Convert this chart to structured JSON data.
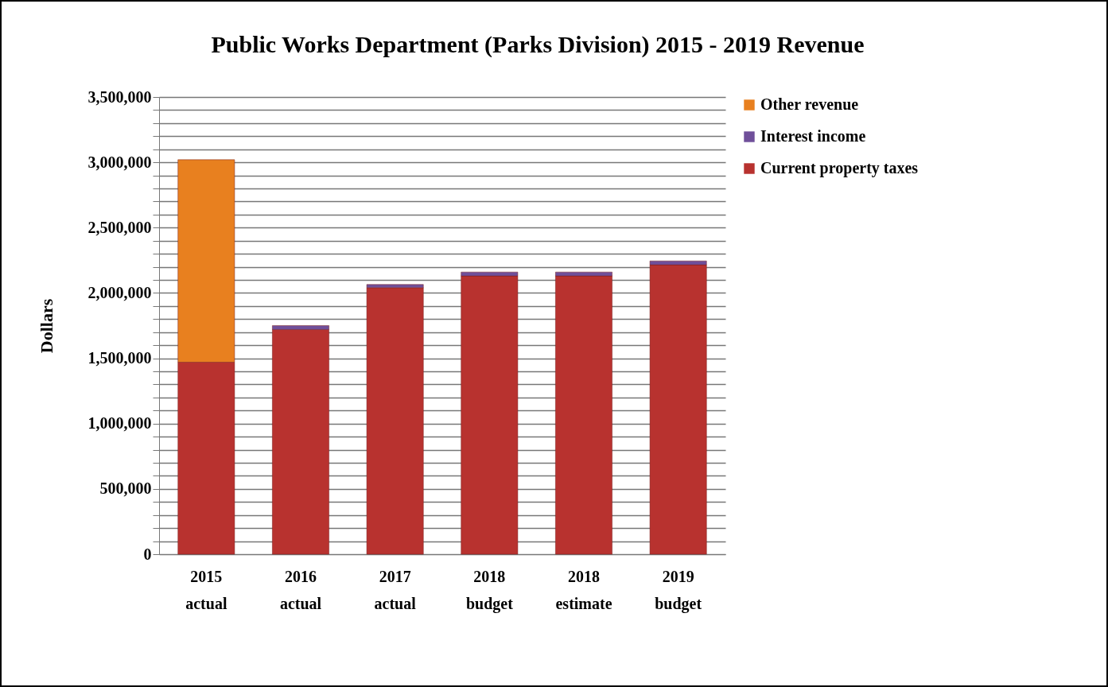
{
  "chart_data": {
    "type": "bar",
    "title": "Public Works Department (Parks Division) 2015 - 2019 Revenue",
    "ylabel": "Dollars",
    "stacked": true,
    "legend": "right",
    "grid": "y",
    "categories": [
      "2015 actual",
      "2016 actual",
      "2017 actual",
      "2018 budget",
      "2018 estimate",
      "2019 budget"
    ],
    "series": [
      {
        "name": "Current property taxes",
        "color": "#b8322f",
        "values": [
          1470000,
          1720000,
          2040000,
          2130000,
          2130000,
          2215000
        ]
      },
      {
        "name": "Interest income",
        "color": "#6f4f9a",
        "values": [
          null,
          30000,
          25000,
          30000,
          30000,
          30000
        ]
      },
      {
        "name": "Other revenue",
        "color": "#e8801f",
        "values": [
          1550000,
          null,
          null,
          null,
          null,
          null
        ]
      }
    ],
    "ylim": [
      0,
      3500000
    ],
    "yticks": [
      0,
      {
        "value": 100000,
        "label": null
      },
      {
        "value": 200000,
        "label": null
      },
      {
        "value": 300000,
        "label": null
      },
      {
        "value": 400000,
        "label": null
      },
      {
        "value": 500000,
        "label": "500,000"
      },
      {
        "value": 600000,
        "label": null
      },
      {
        "value": 700000,
        "label": null
      },
      {
        "value": 800000,
        "label": null
      },
      {
        "value": 900000,
        "label": null
      },
      {
        "value": 1000000,
        "label": "1,000,000"
      },
      {
        "value": 1100000,
        "label": null
      },
      {
        "value": 1200000,
        "label": null
      },
      {
        "value": 1300000,
        "label": null
      },
      {
        "value": 1400000,
        "label": null
      },
      {
        "value": 1500000,
        "label": "1,500,000"
      },
      {
        "value": 1600000,
        "label": null
      },
      {
        "value": 1700000,
        "label": null
      },
      {
        "value": 1800000,
        "label": null
      },
      {
        "value": 1900000,
        "label": null
      },
      {
        "value": 2000000,
        "label": "2,000,000"
      },
      {
        "value": 2100000,
        "label": null
      },
      {
        "value": 2200000,
        "label": null
      },
      {
        "value": 2300000,
        "label": null
      },
      {
        "value": 2400000,
        "label": null
      },
      {
        "value": 2500000,
        "label": "2,500,000"
      },
      {
        "value": 2600000,
        "label": null
      },
      {
        "value": 2700000,
        "label": null
      },
      {
        "value": 2800000,
        "label": null
      },
      {
        "value": 2900000,
        "label": null
      },
      {
        "value": 3000000,
        "label": "3,000,000"
      },
      {
        "value": 3100000,
        "label": null
      },
      {
        "value": 3200000,
        "label": null
      },
      {
        "value": 3300000,
        "label": null
      },
      {
        "value": 3400000,
        "label": null
      },
      {
        "value": 3500000,
        "label": "3,500,000"
      }
    ]
  }
}
